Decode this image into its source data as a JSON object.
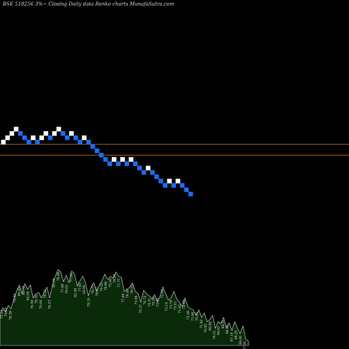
{
  "header": {
    "title": "BSE 518256  3%~  Closing Daily data  Renko  charts MunafaSutra.com"
  },
  "colors": {
    "background": "#000000",
    "up_brick": "#ffffff",
    "down_brick": "#1e6bf0",
    "level_line": "#a0622a",
    "volume_fill": "#0a2a0a",
    "volume_stroke": "#e0e0e0"
  },
  "chart_data": [
    {
      "type": "renko",
      "title": "BSE 518256  3%~  Closing Daily data  Renko  charts MunafaSutra.com",
      "brick_size": "3%",
      "bricks": [
        {
          "dir": "up",
          "level": 6
        },
        {
          "dir": "up",
          "level": 7
        },
        {
          "dir": "up",
          "level": 8
        },
        {
          "dir": "up",
          "level": 9
        },
        {
          "dir": "down",
          "level": 8
        },
        {
          "dir": "down",
          "level": 7
        },
        {
          "dir": "down",
          "level": 6
        },
        {
          "dir": "up",
          "level": 7
        },
        {
          "dir": "down",
          "level": 6
        },
        {
          "dir": "up",
          "level": 7
        },
        {
          "dir": "up",
          "level": 8
        },
        {
          "dir": "down",
          "level": 7
        },
        {
          "dir": "up",
          "level": 8
        },
        {
          "dir": "up",
          "level": 9
        },
        {
          "dir": "down",
          "level": 8
        },
        {
          "dir": "down",
          "level": 7
        },
        {
          "dir": "up",
          "level": 8
        },
        {
          "dir": "down",
          "level": 7
        },
        {
          "dir": "down",
          "level": 6
        },
        {
          "dir": "up",
          "level": 7
        },
        {
          "dir": "down",
          "level": 6
        },
        {
          "dir": "down",
          "level": 5
        },
        {
          "dir": "down",
          "level": 4
        },
        {
          "dir": "down",
          "level": 3
        },
        {
          "dir": "down",
          "level": 2
        },
        {
          "dir": "down",
          "level": 1
        },
        {
          "dir": "up",
          "level": 2
        },
        {
          "dir": "down",
          "level": 1
        },
        {
          "dir": "up",
          "level": 2
        },
        {
          "dir": "down",
          "level": 1
        },
        {
          "dir": "up",
          "level": 2
        },
        {
          "dir": "down",
          "level": 1
        },
        {
          "dir": "down",
          "level": 0
        },
        {
          "dir": "down",
          "level": -1
        },
        {
          "dir": "up",
          "level": 0
        },
        {
          "dir": "down",
          "level": -1
        },
        {
          "dir": "down",
          "level": -2
        },
        {
          "dir": "down",
          "level": -3
        },
        {
          "dir": "down",
          "level": -4
        },
        {
          "dir": "up",
          "level": -3
        },
        {
          "dir": "down",
          "level": -4
        },
        {
          "dir": "up",
          "level": -3
        },
        {
          "dir": "down",
          "level": -4
        },
        {
          "dir": "down",
          "level": -5
        },
        {
          "dir": "down",
          "level": -6
        }
      ],
      "horizontal_levels": [
        5.5,
        3.0
      ],
      "volume_labels": [
        "75.19",
        "74.69",
        "76.39",
        "74.56",
        "80.43",
        "82.79",
        "82.05",
        "76.56",
        "78.76",
        "79.00",
        "79.53",
        "78.53",
        "80.56",
        "76.96",
        "77.06",
        "79.63",
        "77.99",
        "82.48",
        "77.65",
        "82.90",
        "79.15",
        "76.77",
        "78.67",
        "79.25",
        "76.96",
        "73.40",
        "78.36",
        "77.77",
        "77.99",
        "78.26",
        "76.51",
        "73.06",
        "70.37",
        "76.72",
        "74.51",
        "75.50",
        "73.40",
        "71.95",
        "73.14",
        "73.78",
        "73.01",
        "71.82",
        "72.68",
        "73.39",
        "71.66",
        "70.20",
        "71.92",
        "70.85",
        "69.08",
        "70.01",
        "68.81",
        "68.31",
        "68.32",
        "67.18",
        "66.25",
        "69.00",
        "67.31"
      ],
      "volume_profile": [
        28,
        35,
        31,
        37,
        34,
        43,
        50,
        56,
        48,
        57,
        52,
        56,
        44,
        48,
        49,
        44,
        49,
        54,
        44,
        56,
        64,
        70,
        68,
        59,
        65,
        58,
        69,
        66,
        55,
        60,
        64,
        58,
        46,
        54,
        58,
        50,
        56,
        60,
        66,
        61,
        64,
        62,
        68,
        64,
        63,
        50,
        52,
        54,
        58,
        50,
        48,
        40,
        51,
        48,
        46,
        43,
        47,
        40,
        46,
        54,
        48,
        42,
        44,
        50,
        43,
        40,
        36,
        44,
        36,
        34,
        33,
        28,
        33,
        26,
        30,
        22,
        24,
        28,
        16,
        22,
        20,
        26,
        16,
        21,
        14,
        22,
        16,
        11,
        18,
        6,
        4
      ]
    }
  ]
}
